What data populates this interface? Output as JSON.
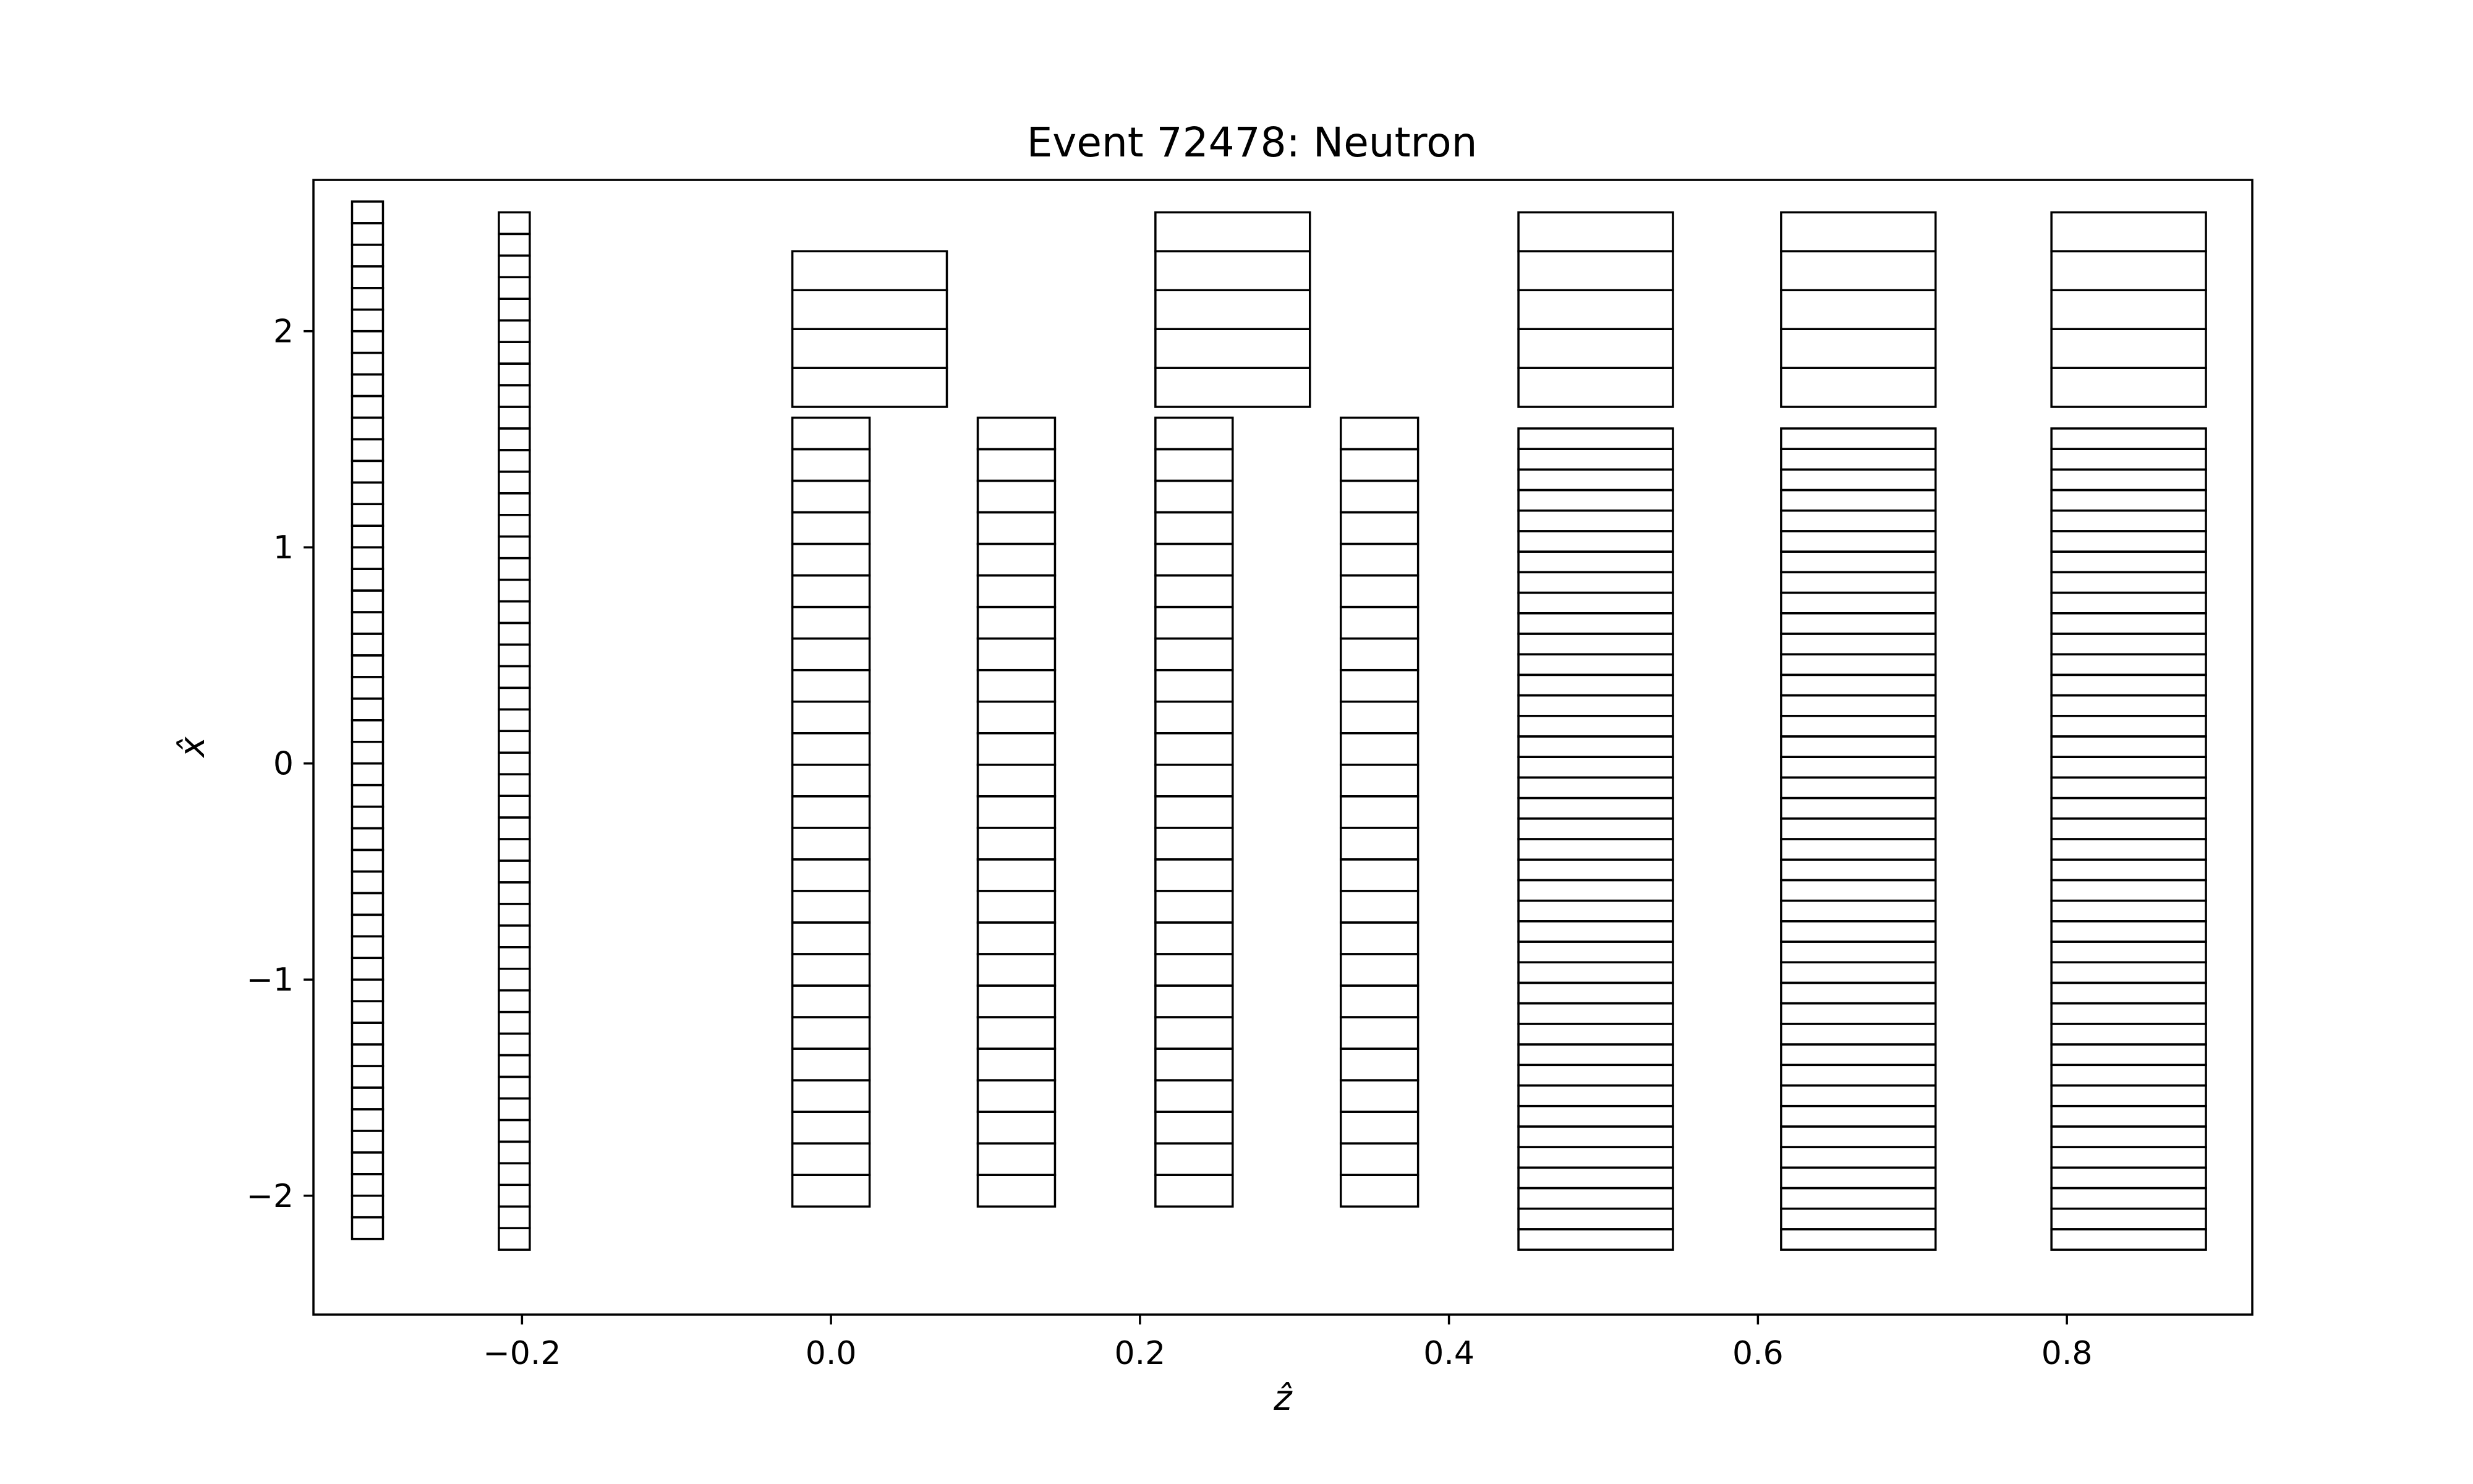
{
  "chart_data": {
    "type": "detector-geometry",
    "title": "Event 72478: Neutron",
    "xlabel": "ẑ",
    "ylabel": "x̂",
    "xlim": [
      -0.335,
      0.92
    ],
    "ylim": [
      -2.55,
      2.7
    ],
    "xticks": [
      -0.2,
      0.0,
      0.2,
      0.4,
      0.6,
      0.8
    ],
    "xtick_labels": [
      "−0.2",
      "0.0",
      "0.2",
      "0.4",
      "0.6",
      "0.8"
    ],
    "yticks": [
      -2,
      -1,
      0,
      1,
      2
    ],
    "ytick_labels": [
      "−2",
      "−1",
      "0",
      "1",
      "2"
    ],
    "grid": false,
    "edge_color": "#000000",
    "modules": [
      {
        "z": [
          -0.31,
          -0.29
        ],
        "x": [
          -2.2,
          2.6
        ],
        "cells": 48
      },
      {
        "z": [
          -0.215,
          -0.195
        ],
        "x": [
          -2.25,
          2.55
        ],
        "cells": 48
      },
      {
        "z": [
          -0.025,
          0.075
        ],
        "x": [
          1.65,
          2.37
        ],
        "cells": 4
      },
      {
        "z": [
          -0.025,
          0.025
        ],
        "x": [
          -2.05,
          1.6
        ],
        "cells": 25
      },
      {
        "z": [
          0.095,
          0.145
        ],
        "x": [
          -2.05,
          1.6
        ],
        "cells": 25
      },
      {
        "z": [
          0.21,
          0.31
        ],
        "x": [
          1.65,
          2.55
        ],
        "cells": 5
      },
      {
        "z": [
          0.21,
          0.26
        ],
        "x": [
          -2.05,
          1.6
        ],
        "cells": 25
      },
      {
        "z": [
          0.33,
          0.38
        ],
        "x": [
          -2.05,
          1.6
        ],
        "cells": 25
      },
      {
        "z": [
          0.445,
          0.545
        ],
        "x": [
          1.65,
          2.55
        ],
        "cells": 5
      },
      {
        "z": [
          0.445,
          0.545
        ],
        "x": [
          -2.25,
          1.55
        ],
        "cells": 40
      },
      {
        "z": [
          0.615,
          0.715
        ],
        "x": [
          1.65,
          2.55
        ],
        "cells": 5
      },
      {
        "z": [
          0.615,
          0.715
        ],
        "x": [
          -2.25,
          1.55
        ],
        "cells": 40
      },
      {
        "z": [
          0.79,
          0.89
        ],
        "x": [
          1.65,
          2.55
        ],
        "cells": 5
      },
      {
        "z": [
          0.79,
          0.89
        ],
        "x": [
          -2.25,
          1.55
        ],
        "cells": 40
      }
    ]
  }
}
